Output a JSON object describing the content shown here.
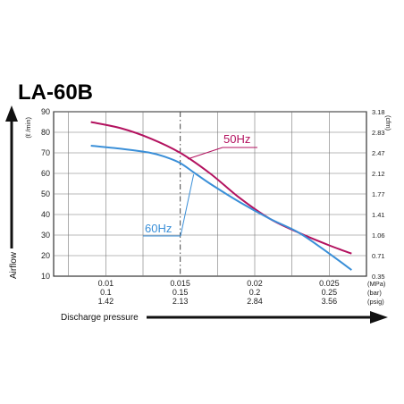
{
  "chart_data": {
    "type": "line",
    "title": "LA-60B",
    "xlabel": "Discharge pressure",
    "ylabel": "Airflow",
    "y_unit_left": "(ℓ /min)",
    "y_unit_right": "(cfm)",
    "x_ticks": [
      {
        "mpa": "0.01",
        "bar": "0.1",
        "psig": "1.42"
      },
      {
        "mpa": "0.015",
        "bar": "0.15",
        "psig": "2.13"
      },
      {
        "mpa": "0.02",
        "bar": "0.2",
        "psig": "2.84"
      },
      {
        "mpa": "0.025",
        "bar": "0.25",
        "psig": "3.56"
      }
    ],
    "x_unit_labels": [
      "(MPa)",
      "(bar)",
      "(psig)"
    ],
    "y_ticks_left": [
      "10",
      "20",
      "30",
      "40",
      "50",
      "60",
      "70",
      "80",
      "90"
    ],
    "y_ticks_right": [
      "0.35",
      "0.71",
      "1.06",
      "1.41",
      "1.77",
      "2.12",
      "2.47",
      "2.83",
      "3.18"
    ],
    "xlim": [
      0.0065,
      0.0275
    ],
    "ylim": [
      10,
      90
    ],
    "grid": true,
    "reference_line_x": 0.015,
    "series": [
      {
        "name": "50Hz",
        "color": "#b3125f",
        "x": [
          0.009,
          0.011,
          0.013,
          0.015,
          0.017,
          0.019,
          0.021,
          0.023,
          0.025,
          0.0265
        ],
        "y": [
          85,
          82,
          77,
          70,
          60,
          48,
          38,
          31,
          25,
          21
        ]
      },
      {
        "name": "60Hz",
        "color": "#3a8fd8",
        "x": [
          0.009,
          0.011,
          0.013,
          0.014,
          0.015,
          0.016,
          0.017,
          0.019,
          0.021,
          0.023,
          0.025,
          0.0265
        ],
        "y": [
          73.5,
          72,
          70,
          68,
          65,
          60,
          55,
          46,
          38,
          31,
          21,
          13
        ]
      }
    ]
  }
}
